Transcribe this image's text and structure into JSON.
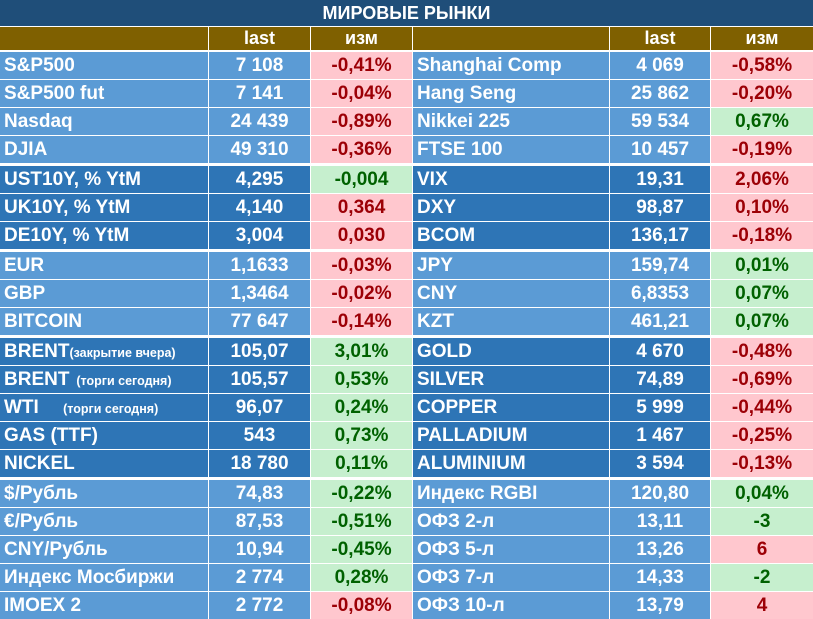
{
  "title": "МИРОВЫЕ РЫНКИ",
  "headers": {
    "last": "last",
    "change": "изм"
  },
  "colors": {
    "title_bg": "#1f4e79",
    "header_bg": "#7f6000",
    "block_light": "#5b9bd5",
    "block_dark": "#2e75b6",
    "negative_bg": "#ffc7ce",
    "negative_text": "#9c0006",
    "positive_bg": "#c6efce",
    "positive_text": "#006100"
  },
  "blocks": [
    {
      "shade": "light",
      "rows": [
        {
          "left": {
            "name": "S&P500",
            "last": "7 108",
            "change": "-0,41%",
            "dir": "neg"
          },
          "right": {
            "name": "Shanghai Comp",
            "last": "4 069",
            "change": "-0,58%",
            "dir": "neg"
          }
        },
        {
          "left": {
            "name": "S&P500 fut",
            "last": "7 141",
            "change": "-0,04%",
            "dir": "neg"
          },
          "right": {
            "name": "Hang Seng",
            "last": "25 862",
            "change": "-0,20%",
            "dir": "neg"
          }
        },
        {
          "left": {
            "name": "Nasdaq",
            "last": "24 439",
            "change": "-0,89%",
            "dir": "neg"
          },
          "right": {
            "name": "Nikkei 225",
            "last": "59 534",
            "change": "0,67%",
            "dir": "pos"
          }
        },
        {
          "left": {
            "name": "DJIA",
            "last": "49 310",
            "change": "-0,36%",
            "dir": "neg"
          },
          "right": {
            "name": "FTSE 100",
            "last": "10 457",
            "change": "-0,19%",
            "dir": "neg"
          }
        }
      ]
    },
    {
      "shade": "dark",
      "rows": [
        {
          "left": {
            "name": "UST10Y, % YtM",
            "last": "4,295",
            "change": "-0,004",
            "dir": "pos"
          },
          "right": {
            "name": "VIX",
            "last": "19,31",
            "change": "2,06%",
            "dir": "neg"
          }
        },
        {
          "left": {
            "name": "UK10Y, % YtM",
            "last": "4,140",
            "change": "0,364",
            "dir": "neg"
          },
          "right": {
            "name": "DXY",
            "last": "98,87",
            "change": "0,10%",
            "dir": "neg"
          }
        },
        {
          "left": {
            "name": "DE10Y, % YtM",
            "last": "3,004",
            "change": "0,030",
            "dir": "neg"
          },
          "right": {
            "name": "BCOM",
            "last": "136,17",
            "change": "-0,18%",
            "dir": "neg"
          }
        }
      ]
    },
    {
      "shade": "light",
      "rows": [
        {
          "left": {
            "name": "EUR",
            "last": "1,1633",
            "change": "-0,03%",
            "dir": "neg"
          },
          "right": {
            "name": "JPY",
            "last": "159,74",
            "change": "0,01%",
            "dir": "pos"
          }
        },
        {
          "left": {
            "name": "GBP",
            "last": "1,3464",
            "change": "-0,02%",
            "dir": "neg"
          },
          "right": {
            "name": "CNY",
            "last": "6,8353",
            "change": "0,07%",
            "dir": "pos"
          }
        },
        {
          "left": {
            "name": "BITCOIN",
            "last": "77 647",
            "change": "-0,14%",
            "dir": "neg"
          },
          "right": {
            "name": "KZT",
            "last": "461,21",
            "change": "0,07%",
            "dir": "pos"
          }
        }
      ]
    },
    {
      "shade": "dark",
      "rows": [
        {
          "left": {
            "name": "BRENT",
            "note": "(закрытие вчера)",
            "last": "105,07",
            "change": "3,01%",
            "dir": "pos"
          },
          "right": {
            "name": "GOLD",
            "last": "4 670",
            "change": "-0,48%",
            "dir": "neg"
          }
        },
        {
          "left": {
            "name": "BRENT",
            "note": "  (торги сегодня)",
            "last": "105,57",
            "change": "0,53%",
            "dir": "pos"
          },
          "right": {
            "name": "SILVER",
            "last": "74,89",
            "change": "-0,69%",
            "dir": "neg"
          }
        },
        {
          "left": {
            "name": "WTI",
            "note": "       (торги сегодня)",
            "last": "96,07",
            "change": "0,24%",
            "dir": "pos"
          },
          "right": {
            "name": "COPPER",
            "last": "5 999",
            "change": "-0,44%",
            "dir": "neg"
          }
        },
        {
          "left": {
            "name": "GAS (TTF)",
            "last": "543",
            "change": "0,73%",
            "dir": "pos"
          },
          "right": {
            "name": "PALLADIUM",
            "last": "1 467",
            "change": "-0,25%",
            "dir": "neg"
          }
        },
        {
          "left": {
            "name": "NICKEL",
            "last": "18 780",
            "change": "0,11%",
            "dir": "pos"
          },
          "right": {
            "name": "ALUMINIUM",
            "last": "3 594",
            "change": "-0,13%",
            "dir": "neg"
          }
        }
      ]
    },
    {
      "shade": "light",
      "rows": [
        {
          "left": {
            "name": "$/Рубль",
            "last": "74,83",
            "change": "-0,22%",
            "dir": "pos"
          },
          "right": {
            "name": "Индекс RGBI",
            "last": "120,80",
            "change": "0,04%",
            "dir": "pos"
          }
        },
        {
          "left": {
            "name": "€/Рубль",
            "last": "87,53",
            "change": "-0,51%",
            "dir": "pos"
          },
          "right": {
            "name": "ОФЗ 2-л",
            "last": "13,11",
            "change": "-3",
            "dir": "pos"
          }
        },
        {
          "left": {
            "name": "CNY/Рубль",
            "last": "10,94",
            "change": "-0,45%",
            "dir": "pos"
          },
          "right": {
            "name": "ОФЗ 5-л",
            "last": "13,26",
            "change": "6",
            "dir": "neg"
          }
        },
        {
          "left": {
            "name": "Индекс Мосбиржи",
            "last": "2 774",
            "change": "0,28%",
            "dir": "pos"
          },
          "right": {
            "name": "ОФЗ 7-л",
            "last": "14,33",
            "change": "-2",
            "dir": "pos"
          }
        },
        {
          "left": {
            "name": "IMOEX 2",
            "last": "2 772",
            "change": "-0,08%",
            "dir": "neg"
          },
          "right": {
            "name": "ОФЗ 10-л",
            "last": "13,79",
            "change": "4",
            "dir": "neg"
          }
        }
      ]
    }
  ]
}
